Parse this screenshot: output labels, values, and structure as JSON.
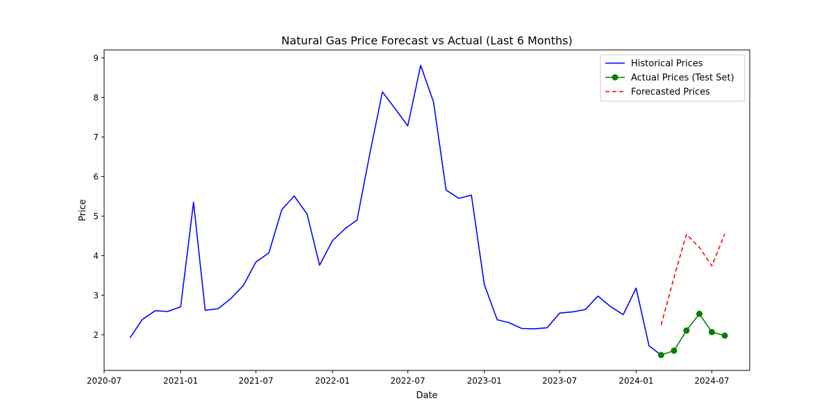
{
  "chart_data": {
    "type": "line",
    "title": "Natural Gas Price Forecast vs Actual (Last 6 Months)",
    "xlabel": "Date",
    "ylabel": "Price",
    "xlim": [
      "2020-07-01",
      "2024-09-30"
    ],
    "ylim": [
      1.1,
      9.2
    ],
    "x_ticks": [
      "2020-07",
      "2021-01",
      "2021-07",
      "2022-01",
      "2022-07",
      "2023-01",
      "2023-07",
      "2024-01",
      "2024-07"
    ],
    "y_ticks": [
      2,
      3,
      4,
      5,
      6,
      7,
      8,
      9
    ],
    "grid": false,
    "legend_position": "top-right",
    "series": [
      {
        "name": "Historical Prices",
        "color": "#0000ff",
        "style": "solid",
        "markers": false,
        "x": [
          "2020-09-01",
          "2020-10-01",
          "2020-11-01",
          "2020-12-01",
          "2021-01-01",
          "2021-02-01",
          "2021-03-01",
          "2021-04-01",
          "2021-05-01",
          "2021-06-01",
          "2021-07-01",
          "2021-08-01",
          "2021-09-01",
          "2021-10-01",
          "2021-11-01",
          "2021-12-01",
          "2022-01-01",
          "2022-02-01",
          "2022-03-01",
          "2022-04-01",
          "2022-05-01",
          "2022-06-01",
          "2022-07-01",
          "2022-08-01",
          "2022-09-01",
          "2022-10-01",
          "2022-11-01",
          "2022-12-01",
          "2023-01-01",
          "2023-02-01",
          "2023-03-01",
          "2023-04-01",
          "2023-05-01",
          "2023-06-01",
          "2023-07-01",
          "2023-08-01",
          "2023-09-01",
          "2023-10-01",
          "2023-11-01",
          "2023-12-01",
          "2024-01-01",
          "2024-02-01",
          "2024-03-01"
        ],
        "values": [
          1.92,
          2.39,
          2.61,
          2.59,
          2.71,
          5.35,
          2.62,
          2.66,
          2.91,
          3.25,
          3.84,
          4.07,
          5.16,
          5.51,
          5.05,
          3.76,
          4.38,
          4.69,
          4.9,
          6.59,
          8.14,
          7.71,
          7.28,
          8.81,
          7.88,
          5.66,
          5.45,
          5.53,
          3.27,
          2.38,
          2.31,
          2.16,
          2.15,
          2.18,
          2.55,
          2.58,
          2.64,
          2.98,
          2.71,
          2.51,
          3.18,
          1.72,
          1.49
        ]
      },
      {
        "name": "Actual Prices (Test Set)",
        "color": "#008000",
        "style": "solid",
        "markers": true,
        "x": [
          "2024-03-01",
          "2024-04-01",
          "2024-05-01",
          "2024-06-01",
          "2024-07-01",
          "2024-08-01"
        ],
        "values": [
          1.49,
          1.6,
          2.11,
          2.53,
          2.07,
          1.98
        ]
      },
      {
        "name": "Forecasted Prices",
        "color": "#ff0000",
        "style": "dashed",
        "markers": false,
        "x": [
          "2024-03-01",
          "2024-04-01",
          "2024-05-01",
          "2024-06-01",
          "2024-07-01",
          "2024-08-01"
        ],
        "values": [
          2.25,
          3.45,
          4.54,
          4.21,
          3.74,
          4.55
        ]
      }
    ]
  }
}
